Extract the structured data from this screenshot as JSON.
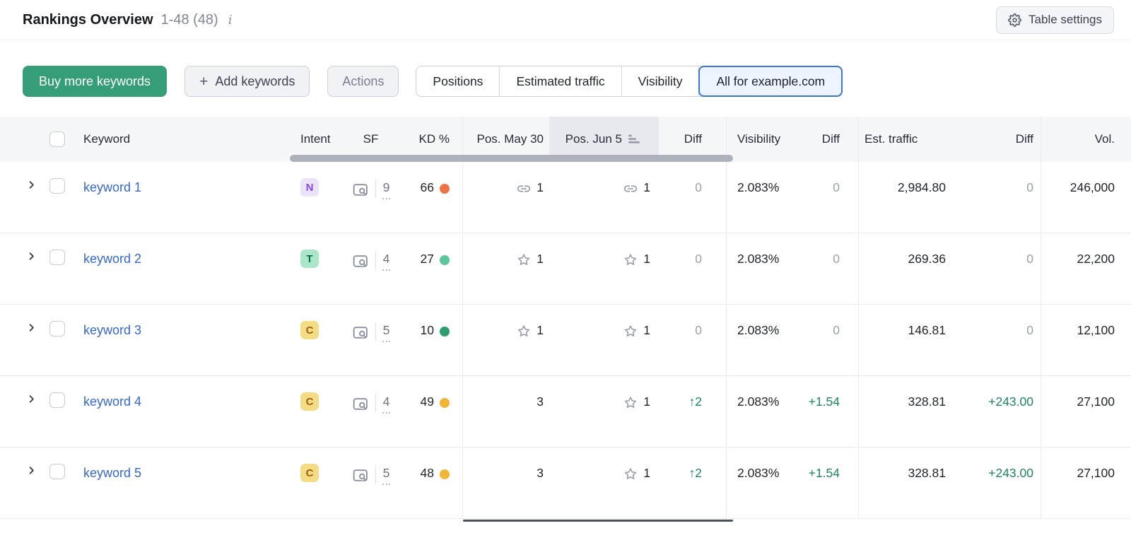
{
  "header": {
    "title": "Rankings Overview",
    "range": "1-48 (48)",
    "info": "i",
    "table_settings": "Table settings"
  },
  "toolbar": {
    "buy_more": "Buy more keywords",
    "add_plus": "+",
    "add_keywords": "Add keywords",
    "actions": "Actions",
    "view_tabs": [
      {
        "label": "Positions",
        "selected": false
      },
      {
        "label": "Estimated traffic",
        "selected": false
      },
      {
        "label": "Visibility",
        "selected": false
      },
      {
        "label": "All for example.com",
        "selected": true
      }
    ]
  },
  "colors": {
    "buy_button_green": "#359e77",
    "selected_tab_blue": "#3b76d2",
    "link_blue": "#3467d6",
    "positive_diff_green": "#1d8466",
    "neutral_diff_gray": "#99a0af"
  },
  "table": {
    "headers": {
      "keyword": "Keyword",
      "intent": "Intent",
      "sf": "SF",
      "kd": "KD %",
      "pos_prev": "Pos. May 30",
      "pos_curr": "Pos. Jun 5",
      "diff": "Diff",
      "visibility": "Visibility",
      "est_traffic": "Est. traffic",
      "vol": "Vol."
    },
    "sorted_column": "Pos. Jun 5",
    "rows": [
      {
        "keyword": "keyword 1",
        "intent": {
          "label": "N",
          "bg": "#ebe3fb",
          "color": "#8649e1"
        },
        "sf": "9",
        "kd": {
          "value": "66",
          "dot": "#ef7445"
        },
        "pos_prev": {
          "icon": "link",
          "value": "1"
        },
        "pos_curr": {
          "icon": "link",
          "value": "1"
        },
        "pos_diff": {
          "arrow": "",
          "text": "0",
          "type": "neutral"
        },
        "visibility": "2.083%",
        "vis_diff": {
          "arrow": "",
          "text": "0",
          "type": "neutral"
        },
        "est_traffic": "2,984.80",
        "traffic_diff": {
          "arrow": "",
          "text": "0",
          "type": "neutral"
        },
        "volume": "246,000"
      },
      {
        "keyword": "keyword 2",
        "intent": {
          "label": "T",
          "bg": "#a9e7c6",
          "color": "#0b6a4f"
        },
        "sf": "4",
        "kd": {
          "value": "27",
          "dot": "#5bc69a"
        },
        "pos_prev": {
          "icon": "star",
          "value": "1"
        },
        "pos_curr": {
          "icon": "star",
          "value": "1"
        },
        "pos_diff": {
          "arrow": "",
          "text": "0",
          "type": "neutral"
        },
        "visibility": "2.083%",
        "vis_diff": {
          "arrow": "",
          "text": "0",
          "type": "neutral"
        },
        "est_traffic": "269.36",
        "traffic_diff": {
          "arrow": "",
          "text": "0",
          "type": "neutral"
        },
        "volume": "22,200"
      },
      {
        "keyword": "keyword 3",
        "intent": {
          "label": "C",
          "bg": "#f4dc85",
          "color": "#9d5e10"
        },
        "sf": "5",
        "kd": {
          "value": "10",
          "dot": "#2f9e6e"
        },
        "pos_prev": {
          "icon": "star",
          "value": "1"
        },
        "pos_curr": {
          "icon": "star",
          "value": "1"
        },
        "pos_diff": {
          "arrow": "",
          "text": "0",
          "type": "neutral"
        },
        "visibility": "2.083%",
        "vis_diff": {
          "arrow": "",
          "text": "0",
          "type": "neutral"
        },
        "est_traffic": "146.81",
        "traffic_diff": {
          "arrow": "",
          "text": "0",
          "type": "neutral"
        },
        "volume": "12,100"
      },
      {
        "keyword": "keyword 4",
        "intent": {
          "label": "C",
          "bg": "#f4dc85",
          "color": "#9d5e10"
        },
        "sf": "4",
        "kd": {
          "value": "49",
          "dot": "#f2b636"
        },
        "pos_prev": {
          "icon": "none",
          "value": "3"
        },
        "pos_curr": {
          "icon": "star",
          "value": "1"
        },
        "pos_diff": {
          "arrow": "↑",
          "text": "2",
          "type": "positive"
        },
        "visibility": "2.083%",
        "vis_diff": {
          "arrow": "",
          "text": "+1.54",
          "type": "positive"
        },
        "est_traffic": "328.81",
        "traffic_diff": {
          "arrow": "",
          "text": "+243.00",
          "type": "positive"
        },
        "volume": "27,100"
      },
      {
        "keyword": "keyword 5",
        "intent": {
          "label": "C",
          "bg": "#f4dc85",
          "color": "#9d5e10"
        },
        "sf": "5",
        "kd": {
          "value": "48",
          "dot": "#f2b636"
        },
        "pos_prev": {
          "icon": "none",
          "value": "3"
        },
        "pos_curr": {
          "icon": "star",
          "value": "1"
        },
        "pos_diff": {
          "arrow": "↑",
          "text": "2",
          "type": "positive"
        },
        "visibility": "2.083%",
        "vis_diff": {
          "arrow": "",
          "text": "+1.54",
          "type": "positive"
        },
        "est_traffic": "328.81",
        "traffic_diff": {
          "arrow": "",
          "text": "+243.00",
          "type": "positive"
        },
        "volume": "27,100"
      }
    ]
  }
}
